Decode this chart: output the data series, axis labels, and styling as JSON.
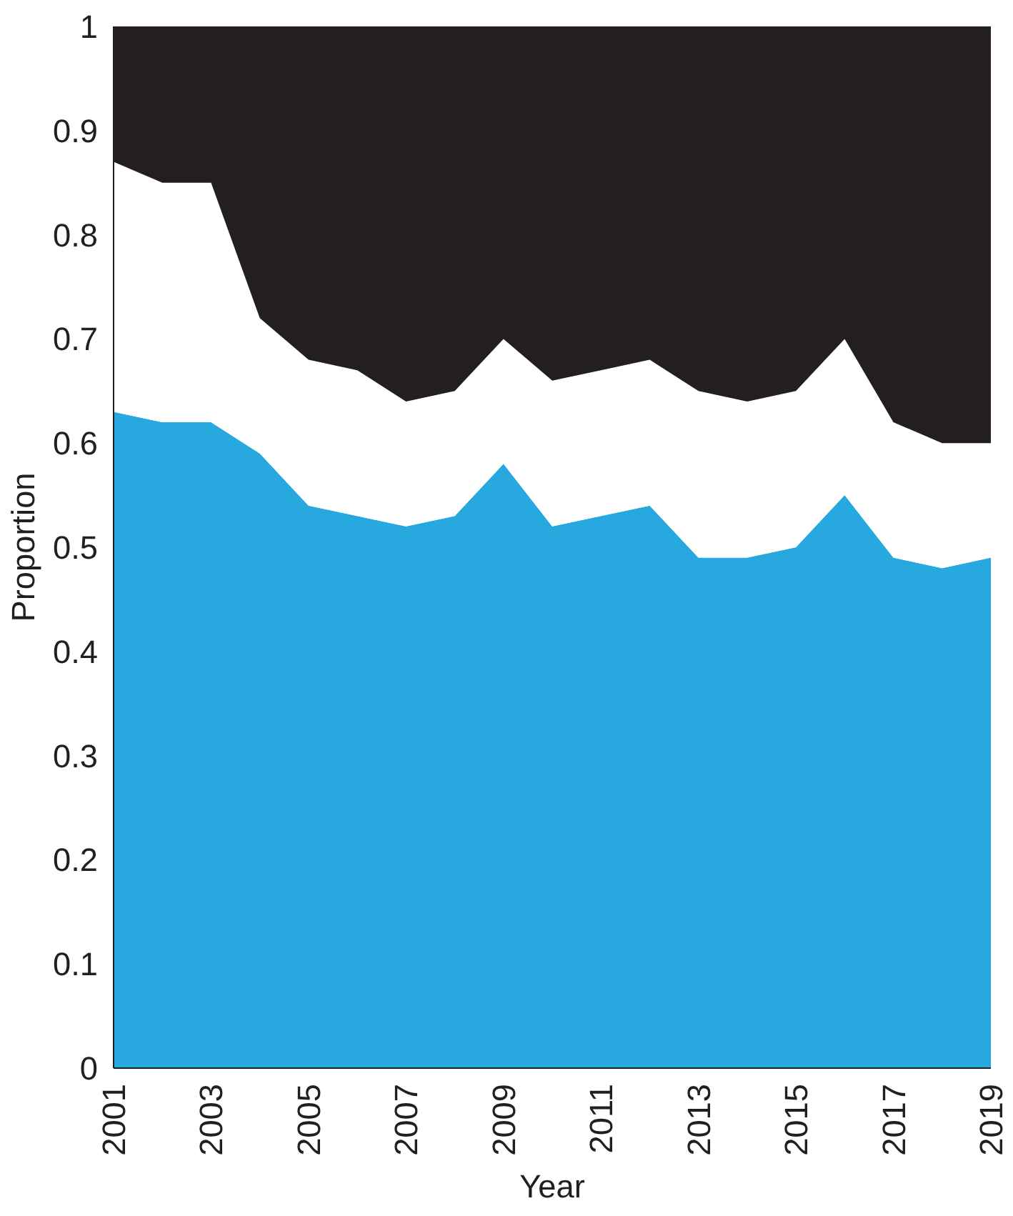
{
  "chart_data": {
    "type": "area",
    "stacked": true,
    "xlabel": "Year",
    "ylabel": "Proportion",
    "x": [
      2001,
      2002,
      2003,
      2004,
      2005,
      2006,
      2007,
      2008,
      2009,
      2010,
      2011,
      2012,
      2013,
      2014,
      2015,
      2016,
      2017,
      2018,
      2019
    ],
    "series": [
      {
        "color": "#27a9e0",
        "values": [
          0.63,
          0.62,
          0.62,
          0.59,
          0.54,
          0.53,
          0.52,
          0.53,
          0.58,
          0.52,
          0.53,
          0.54,
          0.49,
          0.49,
          0.5,
          0.55,
          0.49,
          0.48,
          0.49
        ]
      },
      {
        "color": "#ffffff",
        "values": [
          0.24,
          0.23,
          0.23,
          0.13,
          0.14,
          0.14,
          0.12,
          0.12,
          0.12,
          0.14,
          0.14,
          0.14,
          0.16,
          0.15,
          0.15,
          0.15,
          0.13,
          0.12,
          0.11
        ]
      },
      {
        "color": "#231f20",
        "values": [
          0.13,
          0.15,
          0.15,
          0.28,
          0.32,
          0.33,
          0.36,
          0.35,
          0.3,
          0.34,
          0.33,
          0.32,
          0.35,
          0.36,
          0.35,
          0.3,
          0.38,
          0.4,
          0.4
        ]
      }
    ],
    "xlim": [
      2001,
      2019
    ],
    "xticks": [
      2001,
      2003,
      2005,
      2007,
      2009,
      2011,
      2013,
      2015,
      2017,
      2019
    ],
    "ylim": [
      0,
      1
    ],
    "yticks": [
      0,
      0.1,
      0.2,
      0.3,
      0.4,
      0.5,
      0.6,
      0.7,
      0.8,
      0.9,
      1
    ],
    "grid": false
  }
}
